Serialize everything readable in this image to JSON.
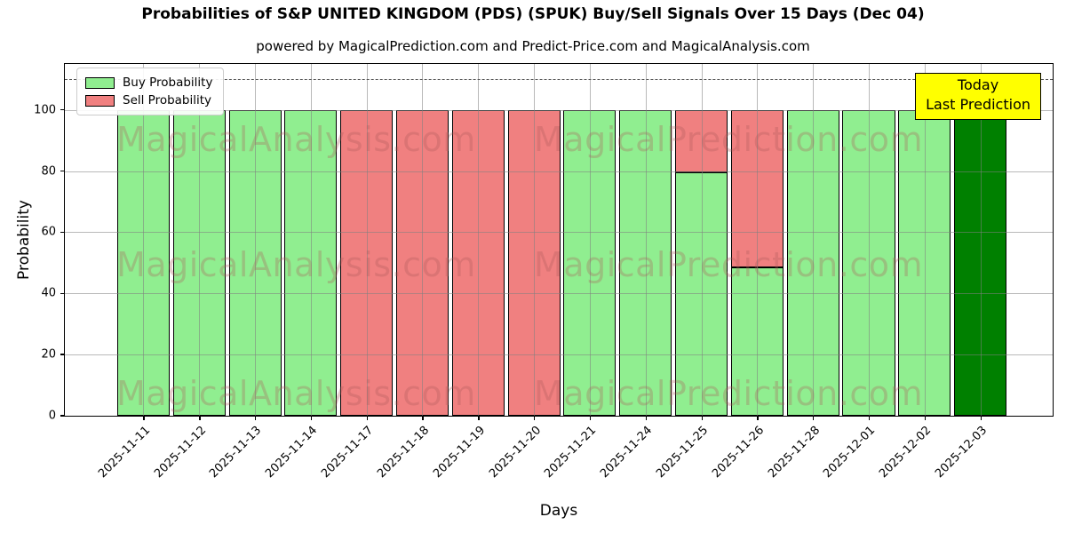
{
  "title": "Probabilities of S&P UNITED KINGDOM (PDS) (SPUK) Buy/Sell Signals Over 15 Days (Dec 04)",
  "subtitle": "powered by MagicalPrediction.com and Predict-Price.com and MagicalAnalysis.com",
  "legend": {
    "buy_label": "Buy Probability",
    "sell_label": "Sell Probability"
  },
  "annotation_box": {
    "line1": "Today",
    "line2": "Last Prediction"
  },
  "watermarks": {
    "left": "MagicalAnalysis.com",
    "right": "MagicalPrediction.com"
  },
  "colors": {
    "buy": "#90ee90",
    "sell": "#f08080",
    "today_bar": "#008000",
    "annotation_bg": "#ffff00",
    "grid": "#808080",
    "dashed_line": "#555555"
  },
  "chart_data": {
    "type": "bar",
    "stacked": true,
    "title": "Probabilities of S&P UNITED KINGDOM (PDS) (SPUK) Buy/Sell Signals Over 15 Days (Dec 04)",
    "xlabel": "Days",
    "ylabel": "Probability",
    "categories": [
      "2025-11-11",
      "2025-11-12",
      "2025-11-13",
      "2025-11-14",
      "2025-11-17",
      "2025-11-18",
      "2025-11-19",
      "2025-11-20",
      "2025-11-21",
      "2025-11-24",
      "2025-11-25",
      "2025-11-26",
      "2025-11-28",
      "2025-12-01",
      "2025-12-02",
      "2025-12-03"
    ],
    "series": [
      {
        "name": "Buy Probability",
        "color": "#90ee90",
        "values": [
          100,
          100,
          100,
          100,
          0,
          0,
          0,
          0,
          100,
          100,
          79.5,
          48.5,
          100,
          100,
          100,
          100
        ]
      },
      {
        "name": "Sell Probability",
        "color": "#f08080",
        "values": [
          0,
          0,
          0,
          0,
          100,
          100,
          100,
          100,
          0,
          0,
          20.5,
          51.5,
          0,
          0,
          0,
          0
        ]
      }
    ],
    "today_index": 15,
    "today_color": "#008000",
    "yticks": [
      0,
      20,
      40,
      60,
      80,
      100
    ],
    "ylim": [
      0,
      115
    ],
    "dashed_line_y": 110,
    "grid": true,
    "legend_position": "upper left"
  }
}
